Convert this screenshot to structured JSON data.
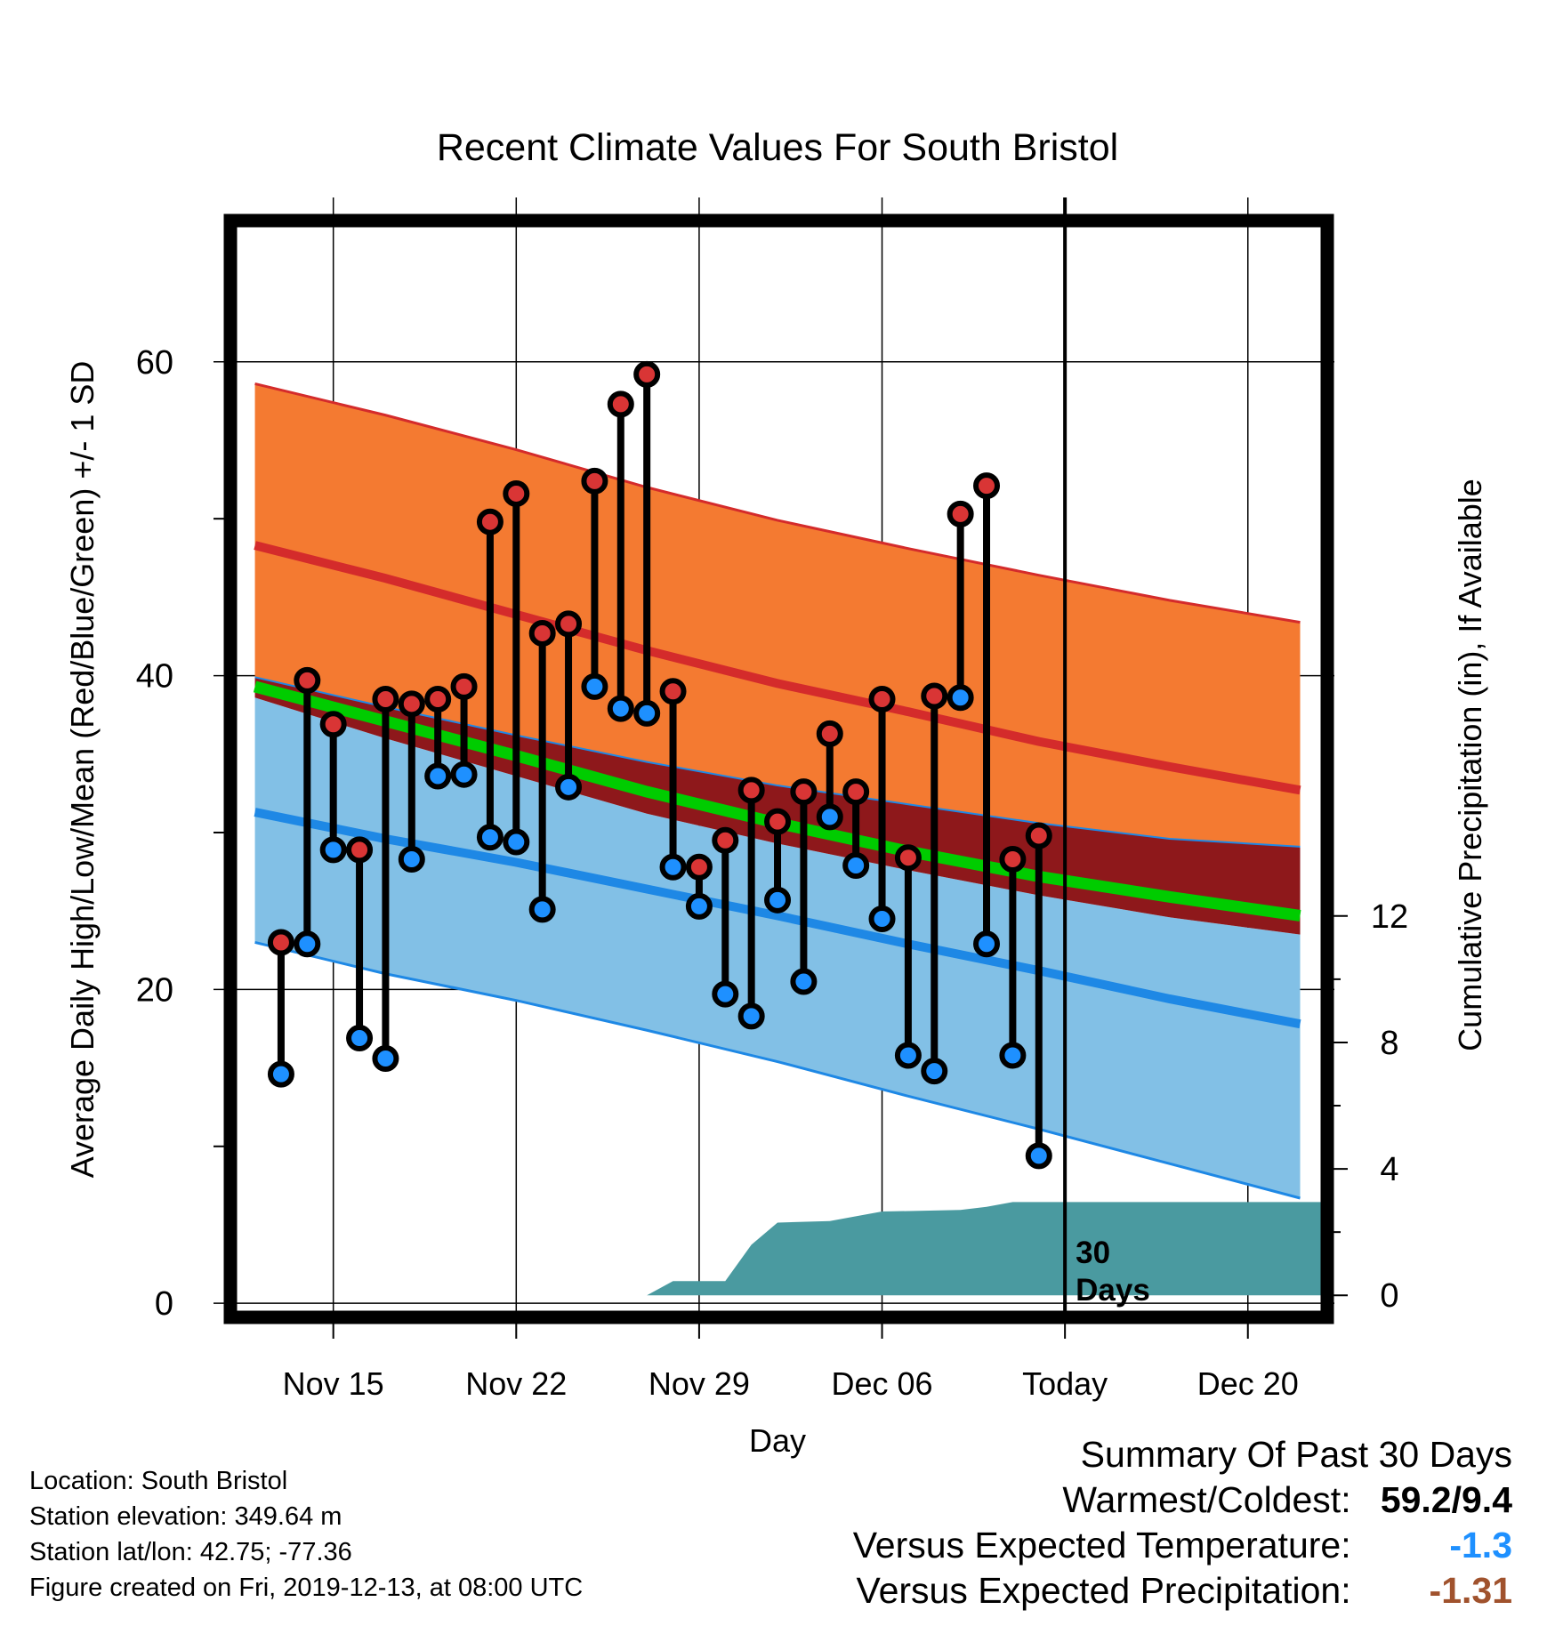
{
  "chart_data": {
    "type": "line",
    "title": "Recent Climate Values For South Bristol",
    "xlabel": "Day",
    "ylabel": "Average Daily High/Low/Mean (Red/Blue/Green) +/- 1 SD",
    "y2label": "Cumulative Precipitation (in), If Available",
    "xlim": [
      -0.7,
      40.8
    ],
    "ylim": [
      -0.5,
      69
    ],
    "y2lim": [
      -0.5,
      34
    ],
    "x_ticks": [
      {
        "x": 3,
        "label": "Nov 15"
      },
      {
        "x": 10,
        "label": "Nov 22"
      },
      {
        "x": 17,
        "label": "Nov 29"
      },
      {
        "x": 24,
        "label": "Dec 06"
      },
      {
        "x": 31,
        "label": "Today"
      },
      {
        "x": 38,
        "label": "Dec 20"
      }
    ],
    "y_ticks": [
      0,
      20,
      40,
      60
    ],
    "y2_ticks": [
      0,
      4,
      8,
      12
    ],
    "grid": true,
    "today_x": 31,
    "today_label": "30 Days",
    "colors": {
      "high_band": "#f47a31",
      "high_mean": "#d42b2b",
      "mean_band": "#8e181b",
      "mean": "#00cc00",
      "low_band": "#82c0e6",
      "low_mean": "#1e88e5",
      "precip": "#4a9aa0",
      "high_marker": "#d93535",
      "low_marker": "#1e90ff",
      "summary_temp": "#1e90ff",
      "summary_precip": "#a0522d"
    },
    "normals": {
      "x": [
        0,
        5,
        10,
        15,
        20,
        25,
        30,
        35,
        40
      ],
      "high_plus_sd": [
        58.6,
        56.6,
        54.4,
        52.0,
        49.9,
        48.1,
        46.4,
        44.8,
        43.4
      ],
      "high_mean": [
        48.3,
        46.2,
        43.9,
        41.6,
        39.5,
        37.7,
        35.8,
        34.2,
        32.7
      ],
      "high_minus_sd": [
        39.9,
        38.0,
        36.2,
        34.5,
        33.0,
        31.8,
        30.6,
        29.6,
        29.1
      ],
      "mean": [
        39.3,
        37.1,
        34.9,
        32.6,
        30.6,
        28.8,
        27.2,
        25.9,
        24.7
      ],
      "low_plus_sd": [
        38.6,
        36.0,
        33.6,
        31.2,
        29.3,
        27.6,
        26.0,
        24.6,
        23.5
      ],
      "low_mean": [
        31.3,
        29.6,
        28.1,
        26.4,
        24.7,
        22.9,
        21.2,
        19.4,
        17.8
      ],
      "low_minus_sd": [
        23.0,
        21.0,
        19.3,
        17.4,
        15.4,
        13.2,
        11.1,
        8.9,
        6.7
      ]
    },
    "series": [
      {
        "name": "High",
        "x": [
          1,
          2,
          3,
          4,
          5,
          6,
          7,
          8,
          9,
          10,
          11,
          12,
          13,
          14,
          15,
          16,
          17,
          18,
          19,
          20,
          21,
          22,
          23,
          24,
          25,
          26,
          27,
          28,
          29,
          30
        ],
        "values": [
          23.0,
          39.7,
          36.9,
          28.9,
          38.5,
          38.2,
          38.5,
          39.3,
          49.8,
          51.6,
          42.7,
          43.3,
          52.4,
          57.3,
          59.2,
          39.0,
          27.8,
          29.5,
          32.7,
          30.7,
          32.6,
          36.3,
          32.6,
          38.5,
          28.4,
          38.7,
          50.3,
          52.1,
          28.3,
          29.8
        ]
      },
      {
        "name": "Low",
        "x": [
          1,
          2,
          3,
          4,
          5,
          6,
          7,
          8,
          9,
          10,
          11,
          12,
          13,
          14,
          15,
          16,
          17,
          18,
          19,
          20,
          21,
          22,
          23,
          24,
          25,
          26,
          27,
          28,
          29,
          30
        ],
        "values": [
          14.6,
          22.9,
          28.9,
          16.9,
          15.6,
          28.3,
          33.6,
          33.7,
          29.7,
          29.4,
          25.1,
          32.9,
          39.3,
          37.9,
          37.6,
          27.8,
          25.3,
          19.7,
          18.3,
          25.7,
          20.5,
          31.0,
          27.9,
          24.5,
          15.8,
          14.8,
          38.6,
          22.9,
          15.8,
          9.4
        ]
      },
      {
        "name": "Cumulative Precipitation",
        "x": [
          15,
          16,
          18,
          19,
          20,
          22,
          24,
          27,
          28,
          29,
          40.8
        ],
        "values": [
          0,
          0.45,
          0.45,
          1.6,
          2.3,
          2.35,
          2.65,
          2.7,
          2.8,
          2.95,
          2.95
        ]
      }
    ]
  },
  "info": {
    "location": "Location: South Bristol",
    "elevation": "Station elevation: 349.64 m",
    "latlon": "Station lat/lon: 42.75; -77.36",
    "created": "Figure created on Fri, 2019-12-13, at 08:00 UTC"
  },
  "summary": {
    "title": "Summary Of Past 30 Days",
    "warmest_label": "Warmest/Coldest:",
    "warmest_value": "59.2/9.4",
    "temp_label": "Versus Expected Temperature:",
    "temp_value": "-1.3",
    "precip_label": "Versus Expected Precipitation:",
    "precip_value": "-1.31"
  }
}
